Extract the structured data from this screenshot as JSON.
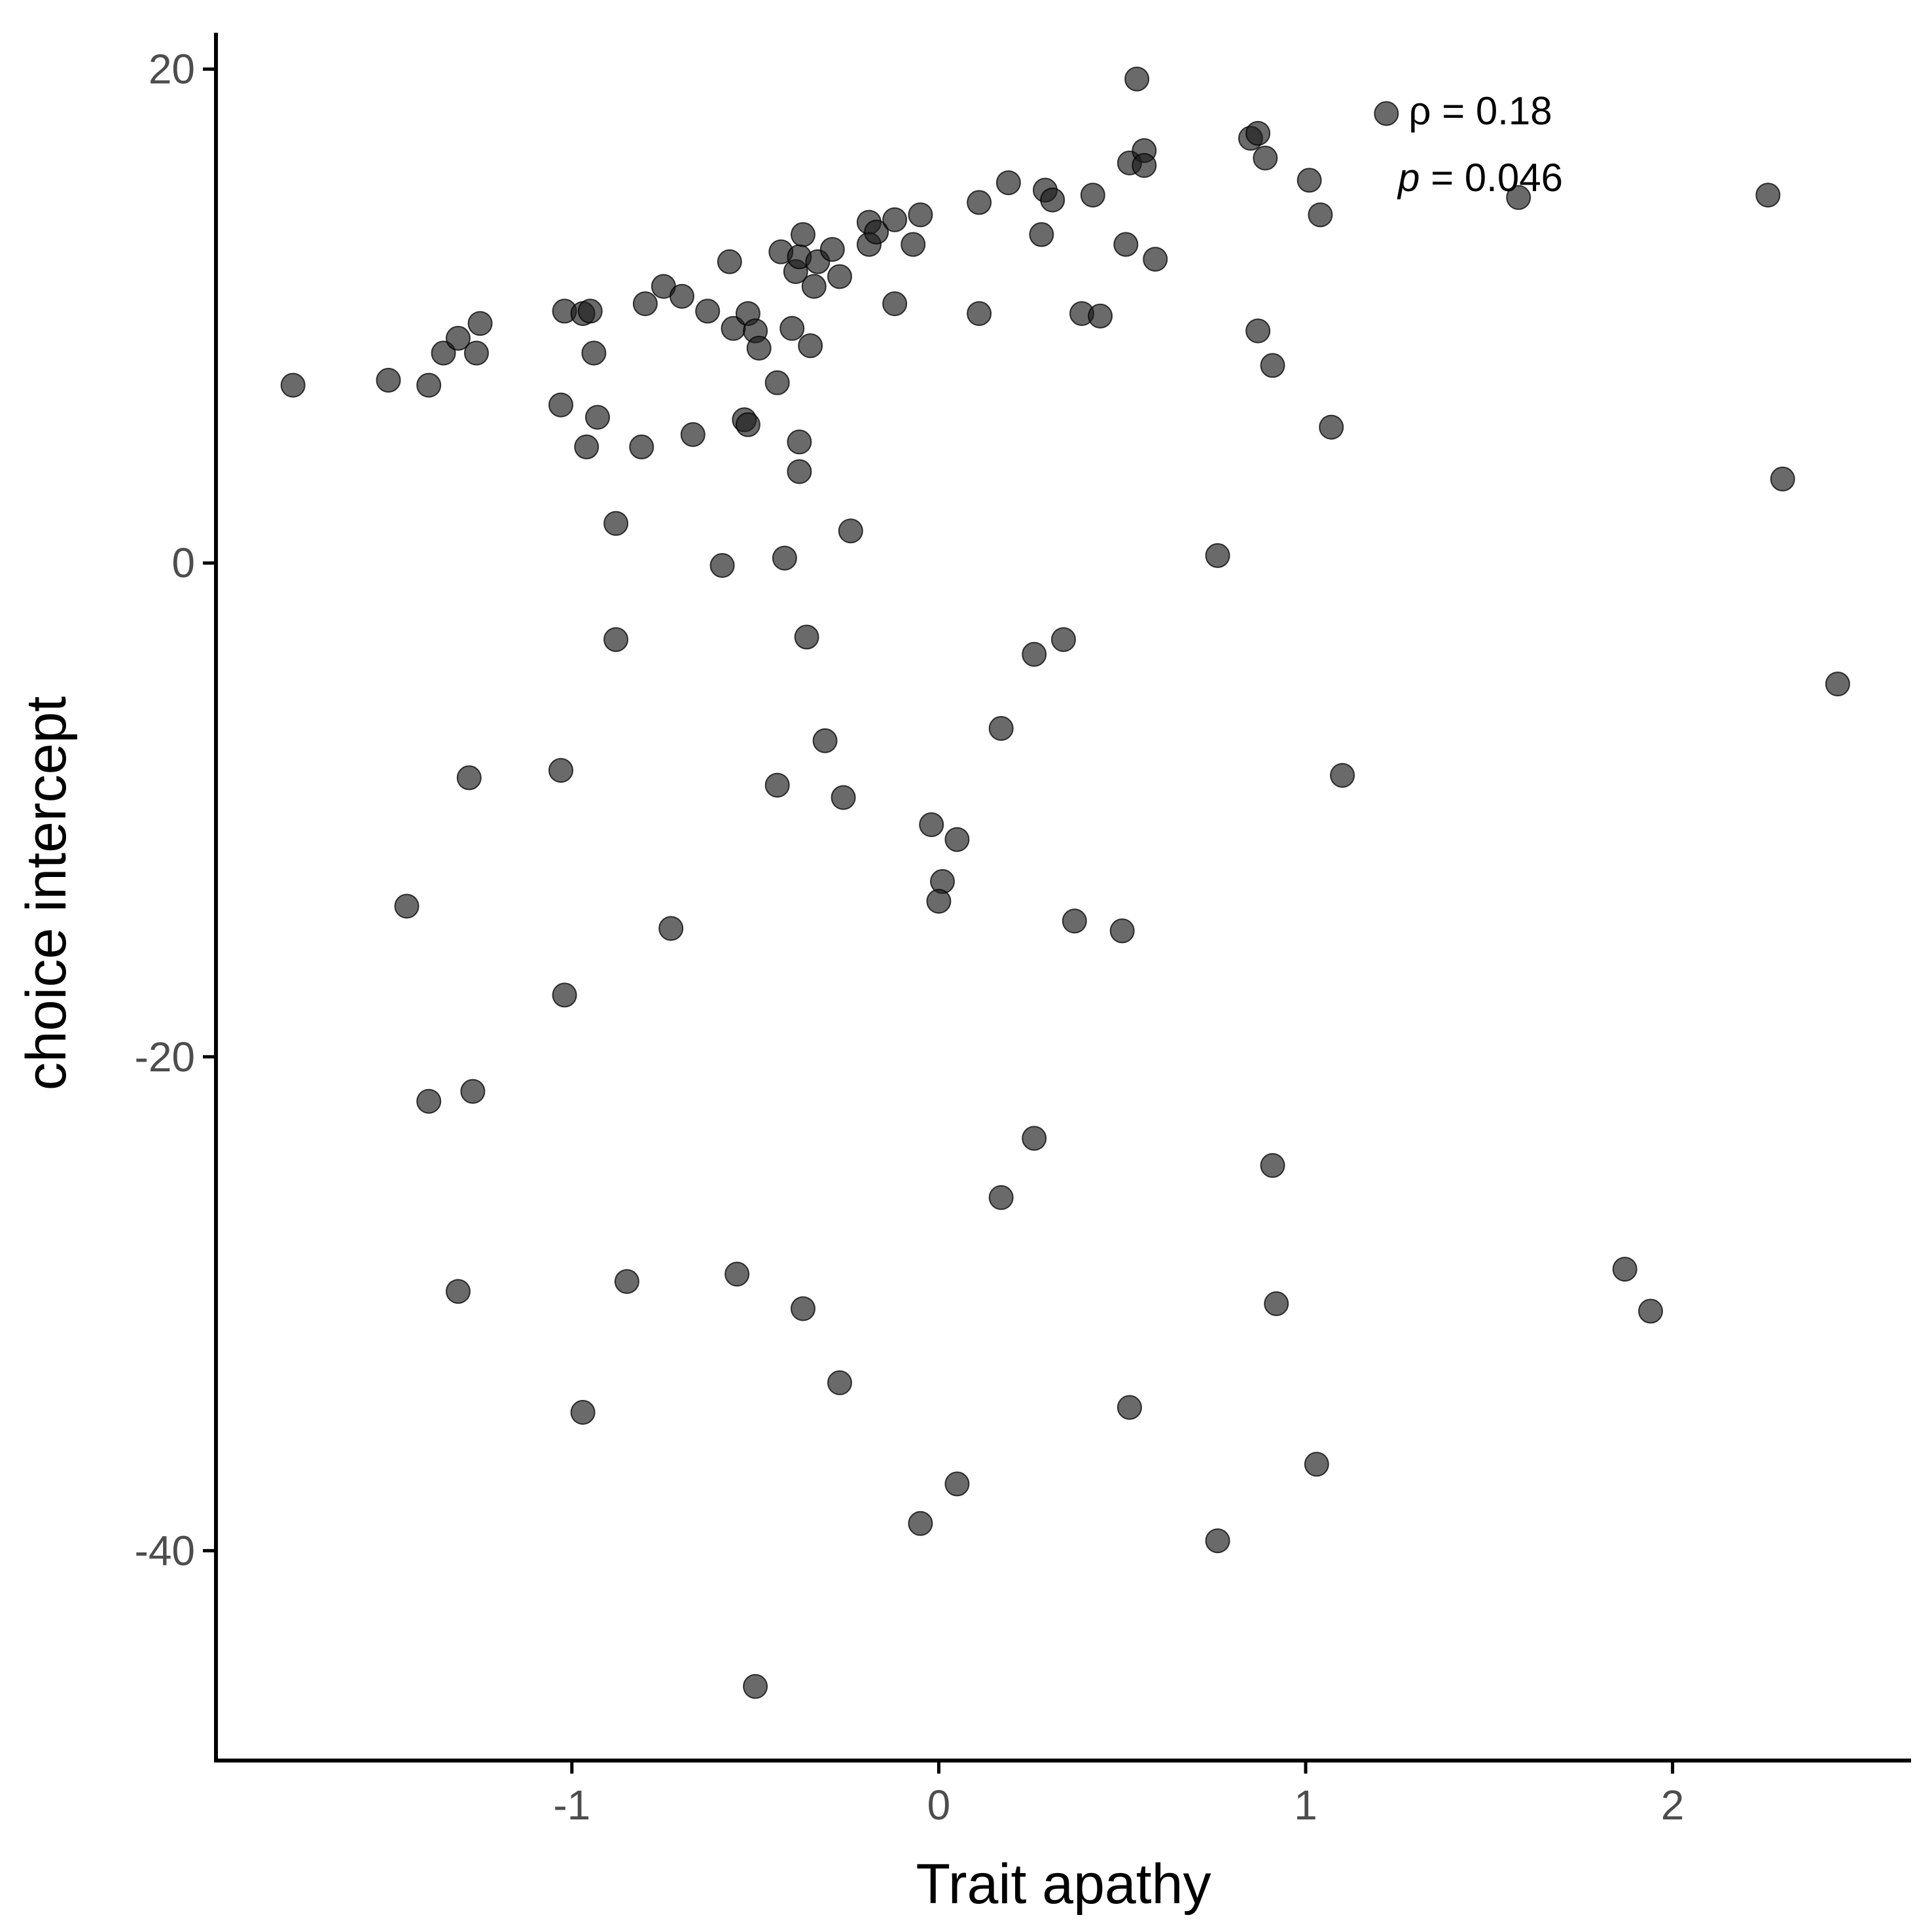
{
  "chart_data": {
    "type": "scatter",
    "xlabel": "Trait apathy",
    "ylabel": "choice intercept",
    "xlim": [
      -1.97,
      2.65
    ],
    "ylim": [
      -48.5,
      22.8
    ],
    "x_ticks": [
      {
        "value": -1,
        "label": "-1"
      },
      {
        "value": 0,
        "label": "0"
      },
      {
        "value": 1,
        "label": "1"
      },
      {
        "value": 2,
        "label": "2"
      }
    ],
    "y_ticks": [
      {
        "value": 20,
        "label": "20"
      },
      {
        "value": 0,
        "label": "0"
      },
      {
        "value": -20,
        "label": "-20"
      },
      {
        "value": -40,
        "label": "-40"
      }
    ],
    "grid": false,
    "point_color": "#1a1a1a",
    "point_opacity": 0.65,
    "annotation": {
      "rho_line": "ρ = 0.18",
      "p_symbol": "p",
      "p_rest": " = 0.046"
    },
    "points": [
      {
        "x": -1.76,
        "y": 7.2
      },
      {
        "x": -1.5,
        "y": 7.4
      },
      {
        "x": -1.39,
        "y": 7.2
      },
      {
        "x": -1.35,
        "y": 8.5
      },
      {
        "x": -1.31,
        "y": 9.1
      },
      {
        "x": -1.26,
        "y": 8.5
      },
      {
        "x": -1.25,
        "y": 9.7
      },
      {
        "x": -1.02,
        "y": 10.2
      },
      {
        "x": -0.97,
        "y": 10.1
      },
      {
        "x": -0.95,
        "y": 10.2
      },
      {
        "x": -0.8,
        "y": 10.5
      },
      {
        "x": -0.75,
        "y": 11.2
      },
      {
        "x": -0.7,
        "y": 10.8
      },
      {
        "x": -0.63,
        "y": 10.2
      },
      {
        "x": -0.57,
        "y": 12.2
      },
      {
        "x": -0.56,
        "y": 9.5
      },
      {
        "x": -0.52,
        "y": 10.1
      },
      {
        "x": -0.5,
        "y": 9.4
      },
      {
        "x": -0.49,
        "y": 8.7
      },
      {
        "x": -0.44,
        "y": 7.3
      },
      {
        "x": -0.43,
        "y": 12.6
      },
      {
        "x": -0.4,
        "y": 9.5
      },
      {
        "x": -0.39,
        "y": 11.8
      },
      {
        "x": -0.38,
        "y": 12.4
      },
      {
        "x": -0.37,
        "y": 13.3
      },
      {
        "x": -0.35,
        "y": 8.8
      },
      {
        "x": -0.34,
        "y": 11.2
      },
      {
        "x": -0.33,
        "y": 12.2
      },
      {
        "x": -0.29,
        "y": 12.7
      },
      {
        "x": -0.27,
        "y": 11.6
      },
      {
        "x": -0.19,
        "y": 13.8
      },
      {
        "x": -0.19,
        "y": 12.9
      },
      {
        "x": -0.17,
        "y": 13.4
      },
      {
        "x": -0.12,
        "y": 13.9
      },
      {
        "x": -0.12,
        "y": 10.5
      },
      {
        "x": -0.07,
        "y": 12.9
      },
      {
        "x": -0.05,
        "y": 14.1
      },
      {
        "x": 0.11,
        "y": 14.6
      },
      {
        "x": 0.11,
        "y": 10.1
      },
      {
        "x": 0.19,
        "y": 15.4
      },
      {
        "x": 0.29,
        "y": 15.1
      },
      {
        "x": 0.28,
        "y": 13.3
      },
      {
        "x": 0.31,
        "y": 14.7
      },
      {
        "x": 0.39,
        "y": 10.1
      },
      {
        "x": 0.42,
        "y": 14.9
      },
      {
        "x": 0.44,
        "y": 10.0
      },
      {
        "x": 0.51,
        "y": 12.9
      },
      {
        "x": 0.52,
        "y": 16.2
      },
      {
        "x": 0.54,
        "y": 19.6
      },
      {
        "x": 0.56,
        "y": 16.7
      },
      {
        "x": 0.56,
        "y": 16.1
      },
      {
        "x": 0.59,
        "y": 12.3
      },
      {
        "x": 0.85,
        "y": 17.2
      },
      {
        "x": 0.87,
        "y": 17.4
      },
      {
        "x": 0.87,
        "y": 9.4
      },
      {
        "x": 0.89,
        "y": 16.4
      },
      {
        "x": 0.91,
        "y": 8.0
      },
      {
        "x": 1.01,
        "y": 15.5
      },
      {
        "x": 1.04,
        "y": 14.1
      },
      {
        "x": 1.07,
        "y": 5.5
      },
      {
        "x": 1.22,
        "y": 18.2
      },
      {
        "x": 1.58,
        "y": 14.8
      },
      {
        "x": 2.26,
        "y": 14.9
      },
      {
        "x": 2.3,
        "y": 3.4
      },
      {
        "x": -1.03,
        "y": 6.4
      },
      {
        "x": -0.94,
        "y": 8.5
      },
      {
        "x": -0.93,
        "y": 5.9
      },
      {
        "x": -0.96,
        "y": 4.7
      },
      {
        "x": -0.81,
        "y": 4.7
      },
      {
        "x": -0.67,
        "y": 5.2
      },
      {
        "x": -0.53,
        "y": 5.8
      },
      {
        "x": -0.52,
        "y": 5.6
      },
      {
        "x": -0.38,
        "y": 4.9
      },
      {
        "x": -0.38,
        "y": 3.7
      },
      {
        "x": -0.88,
        "y": 1.6
      },
      {
        "x": -0.24,
        "y": 1.3
      },
      {
        "x": -0.59,
        "y": -0.1
      },
      {
        "x": -0.42,
        "y": 0.2
      },
      {
        "x": 0.76,
        "y": 0.3
      },
      {
        "x": -0.88,
        "y": -3.1
      },
      {
        "x": -0.36,
        "y": -3.0
      },
      {
        "x": 0.26,
        "y": -3.7
      },
      {
        "x": 0.34,
        "y": -3.1
      },
      {
        "x": 2.45,
        "y": -4.9
      },
      {
        "x": 0.17,
        "y": -6.7
      },
      {
        "x": -0.31,
        "y": -7.2
      },
      {
        "x": -1.28,
        "y": -8.7
      },
      {
        "x": -1.03,
        "y": -8.4
      },
      {
        "x": -0.44,
        "y": -9.0
      },
      {
        "x": -0.26,
        "y": -9.5
      },
      {
        "x": 1.1,
        "y": -8.6
      },
      {
        "x": -0.02,
        "y": -10.6
      },
      {
        "x": 0.05,
        "y": -11.2
      },
      {
        "x": 0.01,
        "y": -12.9
      },
      {
        "x": 0.0,
        "y": -13.7
      },
      {
        "x": -1.45,
        "y": -13.9
      },
      {
        "x": -0.73,
        "y": -14.8
      },
      {
        "x": 0.37,
        "y": -14.5
      },
      {
        "x": 0.5,
        "y": -14.9
      },
      {
        "x": -1.02,
        "y": -17.5
      },
      {
        "x": -1.39,
        "y": -21.8
      },
      {
        "x": -1.27,
        "y": -21.4
      },
      {
        "x": 0.26,
        "y": -23.3
      },
      {
        "x": 0.17,
        "y": -25.7
      },
      {
        "x": 0.91,
        "y": -24.4
      },
      {
        "x": -1.31,
        "y": -29.5
      },
      {
        "x": -0.85,
        "y": -29.1
      },
      {
        "x": -0.55,
        "y": -28.8
      },
      {
        "x": -0.37,
        "y": -30.2
      },
      {
        "x": 0.92,
        "y": -30.0
      },
      {
        "x": 1.87,
        "y": -28.6
      },
      {
        "x": 1.94,
        "y": -30.3
      },
      {
        "x": -0.97,
        "y": -34.4
      },
      {
        "x": -0.27,
        "y": -33.2
      },
      {
        "x": 0.52,
        "y": -34.2
      },
      {
        "x": 1.03,
        "y": -36.5
      },
      {
        "x": 0.05,
        "y": -37.3
      },
      {
        "x": -0.05,
        "y": -38.9
      },
      {
        "x": 0.76,
        "y": -39.6
      },
      {
        "x": -0.5,
        "y": -45.5
      }
    ]
  }
}
